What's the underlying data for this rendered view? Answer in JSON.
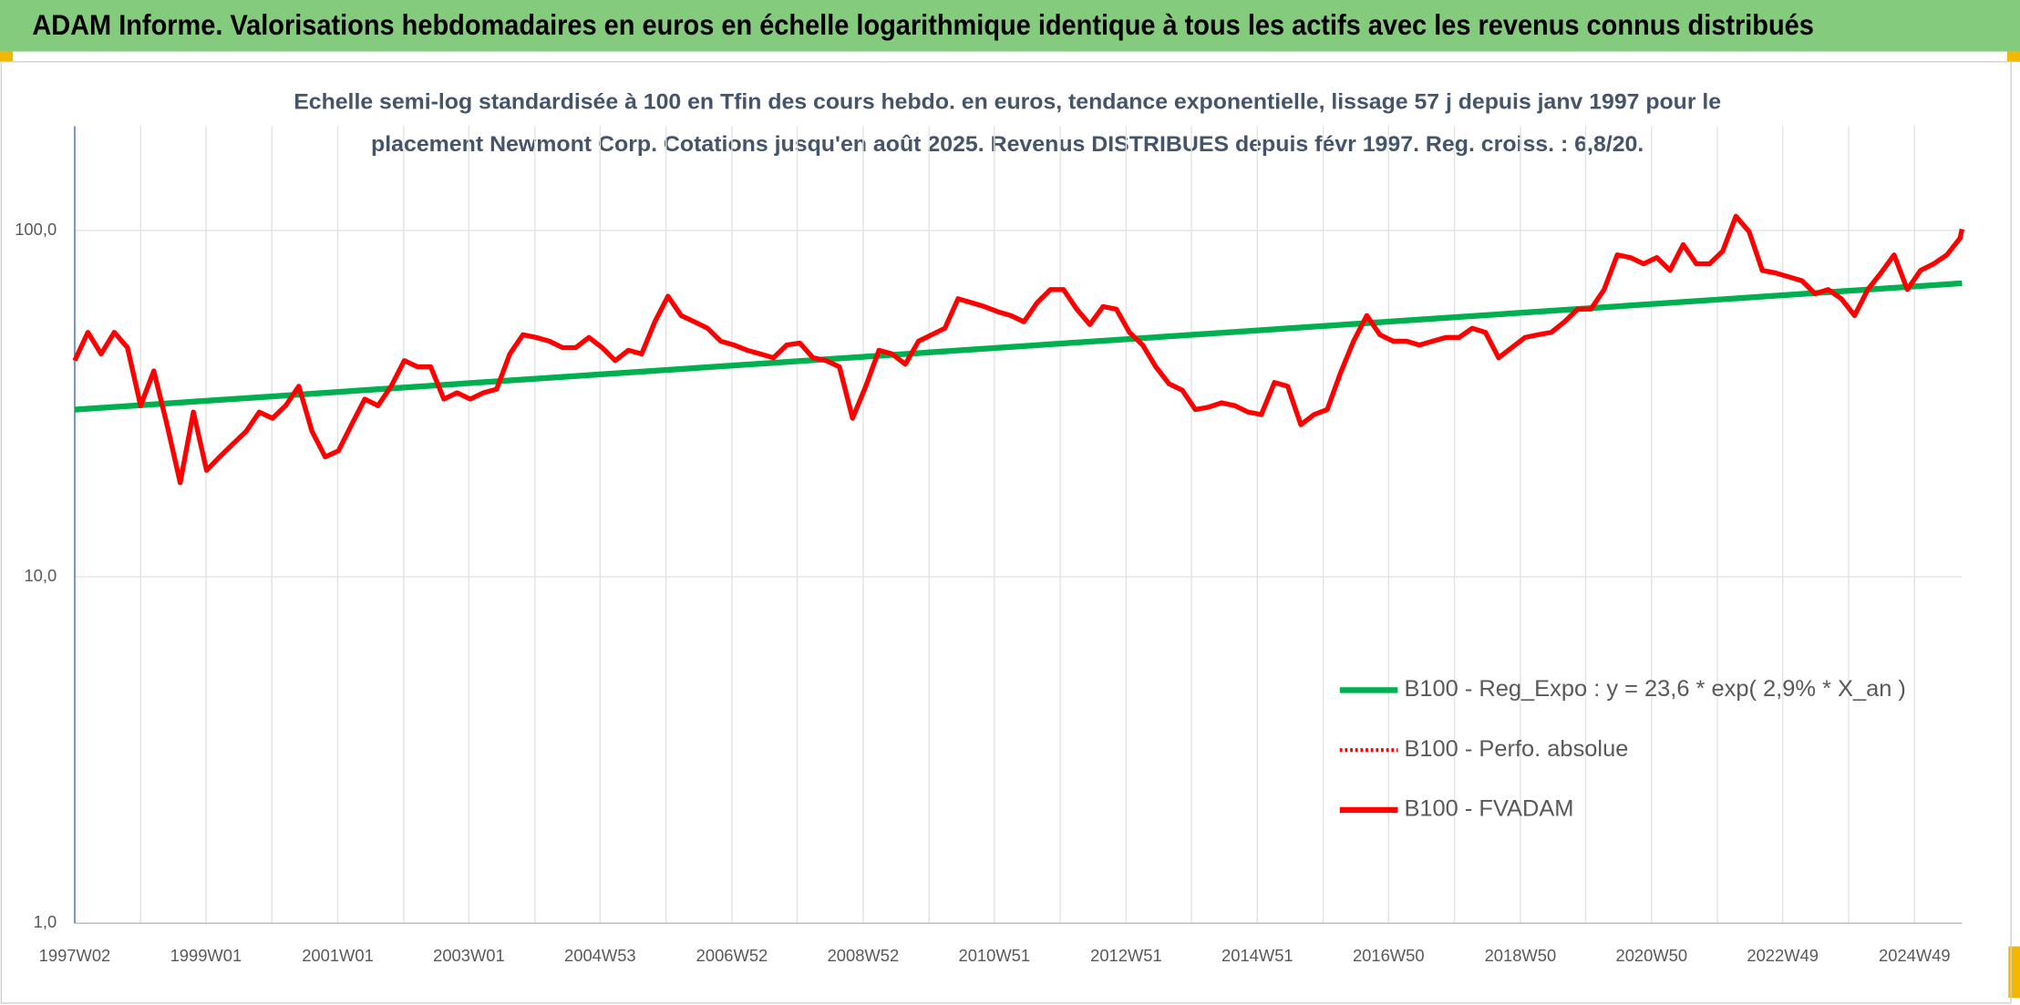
{
  "header": "ADAM Informe. Valorisations hebdomadaires en euros en échelle logarithmique identique à tous les actifs avec les revenus connus distribués",
  "chart_data": {
    "type": "line",
    "title": [
      "Echelle semi-log standardisée à 100 en Tfin des cours hebdo. en euros, tendance exponentielle, lissage 57 j depuis janv 1997 pour le",
      "placement Newmont Corp. Cotations jusqu'en août 2025. Revenus DISTRIBUES depuis févr 1997. Reg. croiss. : 6,8/20."
    ],
    "log_y": true,
    "ylim": [
      1,
      200
    ],
    "yticks": [
      {
        "value": 1,
        "label": "1,0"
      },
      {
        "value": 10,
        "label": "10,0"
      },
      {
        "value": 100,
        "label": "100,0"
      }
    ],
    "xlim": [
      1997.02,
      2025.65
    ],
    "xticks": [
      {
        "value": 1997.02,
        "label": "1997W02"
      },
      {
        "value": 1999.01,
        "label": "1999W01"
      },
      {
        "value": 2001.01,
        "label": "2001W01"
      },
      {
        "value": 2003.0,
        "label": "2003W01"
      },
      {
        "value": 2004.99,
        "label": "2004W53"
      },
      {
        "value": 2006.99,
        "label": "2006W52"
      },
      {
        "value": 2008.98,
        "label": "2008W52"
      },
      {
        "value": 2010.97,
        "label": "2010W51"
      },
      {
        "value": 2012.97,
        "label": "2012W51"
      },
      {
        "value": 2014.96,
        "label": "2014W51"
      },
      {
        "value": 2016.95,
        "label": "2016W50"
      },
      {
        "value": 2018.95,
        "label": "2018W50"
      },
      {
        "value": 2020.94,
        "label": "2020W50"
      },
      {
        "value": 2022.93,
        "label": "2022W49"
      },
      {
        "value": 2024.93,
        "label": "2024W49"
      }
    ],
    "xminor": [
      1998.02,
      2000.01,
      2002.01,
      2004.0,
      2005.99,
      2007.98,
      2009.98,
      2011.97,
      2013.96,
      2015.96,
      2017.95,
      2019.94,
      2021.94,
      2023.93
    ],
    "grid": true,
    "legend": "lower right",
    "series": [
      {
        "name": "B100 - Reg_Expo : y = 23,6 * exp( 2,9% *  X_an )",
        "color": "#00b050",
        "dash": "solid",
        "x": [
          1997.02,
          2025.65
        ],
        "values": [
          30.4,
          70.4
        ]
      },
      {
        "name": "B100 - Perfo. absolue",
        "color": "#ff0000",
        "dash": "dotted"
      },
      {
        "name": "B100 - FVADAM",
        "color": "#ff0000",
        "dash": "solid",
        "x": [
          1997.02,
          1997.22,
          1997.42,
          1997.62,
          1997.82,
          1998.02,
          1998.22,
          1998.42,
          1998.62,
          1998.82,
          1999.02,
          1999.22,
          1999.42,
          1999.62,
          1999.82,
          2000.02,
          2000.22,
          2000.42,
          2000.62,
          2000.82,
          2001.02,
          2001.22,
          2001.42,
          2001.62,
          2001.82,
          2002.02,
          2002.22,
          2002.42,
          2002.62,
          2002.82,
          2003.02,
          2003.22,
          2003.42,
          2003.62,
          2003.82,
          2004.02,
          2004.22,
          2004.42,
          2004.62,
          2004.82,
          2005.02,
          2005.22,
          2005.42,
          2005.62,
          2005.82,
          2006.02,
          2006.22,
          2006.42,
          2006.62,
          2006.82,
          2007.02,
          2007.22,
          2007.42,
          2007.62,
          2007.82,
          2008.02,
          2008.22,
          2008.42,
          2008.62,
          2008.82,
          2009.02,
          2009.22,
          2009.42,
          2009.62,
          2009.82,
          2010.02,
          2010.22,
          2010.42,
          2010.62,
          2010.82,
          2011.02,
          2011.22,
          2011.42,
          2011.62,
          2011.82,
          2012.02,
          2012.22,
          2012.42,
          2012.62,
          2012.82,
          2013.02,
          2013.22,
          2013.42,
          2013.62,
          2013.82,
          2014.02,
          2014.22,
          2014.42,
          2014.62,
          2014.82,
          2015.02,
          2015.22,
          2015.42,
          2015.62,
          2015.82,
          2016.02,
          2016.22,
          2016.42,
          2016.62,
          2016.82,
          2017.02,
          2017.22,
          2017.42,
          2017.62,
          2017.82,
          2018.02,
          2018.22,
          2018.42,
          2018.62,
          2018.82,
          2019.02,
          2019.22,
          2019.42,
          2019.62,
          2019.82,
          2020.02,
          2020.22,
          2020.42,
          2020.62,
          2020.82,
          2021.02,
          2021.22,
          2021.42,
          2021.62,
          2021.82,
          2022.02,
          2022.22,
          2022.42,
          2022.62,
          2022.82,
          2023.02,
          2023.22,
          2023.42,
          2023.62,
          2023.82,
          2024.02,
          2024.22,
          2024.42,
          2024.62,
          2024.82,
          2025.02,
          2025.22,
          2025.42,
          2025.62,
          2025.65
        ],
        "values": [
          42.1,
          50.8,
          44.0,
          50.8,
          45.9,
          31.2,
          39.3,
          27.5,
          18.7,
          29.9,
          20.3,
          22.2,
          24.2,
          26.3,
          29.9,
          28.7,
          31.2,
          35.5,
          26.3,
          22.2,
          23.1,
          27.5,
          32.6,
          31.2,
          35.5,
          42.1,
          40.4,
          40.4,
          32.6,
          34.0,
          32.6,
          34.0,
          34.8,
          44.0,
          50.0,
          49.1,
          47.9,
          45.9,
          45.9,
          49.1,
          45.9,
          42.1,
          45.1,
          44.0,
          54.5,
          64.6,
          56.8,
          54.5,
          52.2,
          47.9,
          46.7,
          45.1,
          44.0,
          42.9,
          46.7,
          47.3,
          42.9,
          42.1,
          40.4,
          28.7,
          35.5,
          45.1,
          44.0,
          41.1,
          47.9,
          50.0,
          52.2,
          63.5,
          61.9,
          60.3,
          58.3,
          56.8,
          54.5,
          61.9,
          67.5,
          67.5,
          59.3,
          53.5,
          60.3,
          59.3,
          50.8,
          46.7,
          40.4,
          36.1,
          34.6,
          30.4,
          30.9,
          31.8,
          31.2,
          29.9,
          29.4,
          36.4,
          35.5,
          27.5,
          29.4,
          30.4,
          38.7,
          47.9,
          56.8,
          50.0,
          47.9,
          47.9,
          46.7,
          47.9,
          49.1,
          49.1,
          52.2,
          50.8,
          42.9,
          45.9,
          49.1,
          50.0,
          50.8,
          54.5,
          59.3,
          59.3,
          67.5,
          85.0,
          83.5,
          80.1,
          83.5,
          76.7,
          91.0,
          80.1,
          80.1,
          87.2,
          109.9,
          99.2,
          76.7,
          75.4,
          73.5,
          71.6,
          65.7,
          67.5,
          63.5,
          56.8,
          67.5,
          75.4,
          85.0,
          67.5,
          76.7,
          80.1,
          85.0,
          95.0,
          100.9
        ]
      }
    ]
  }
}
